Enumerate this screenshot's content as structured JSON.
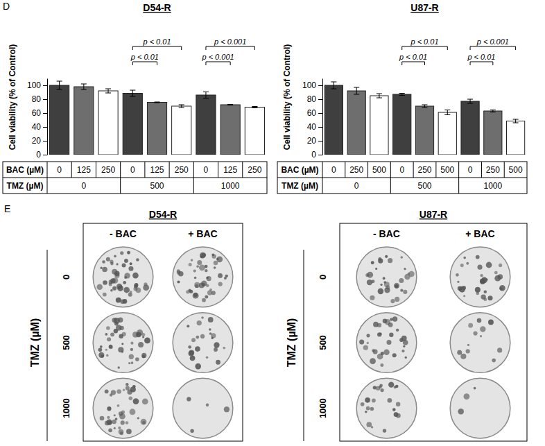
{
  "panel_labels": [
    "D",
    "E"
  ],
  "chart_data": [
    {
      "type": "bar",
      "title": "D54-R",
      "y_label": "Cell viability (% of Control)",
      "categories": [
        "0",
        "125",
        "250",
        "0",
        "125",
        "250",
        "0",
        "125",
        "250"
      ],
      "category_label": "BAC (µM)",
      "groups": [
        "0",
        "500",
        "1000"
      ],
      "group_label": "TMZ (µM)",
      "values": [
        100,
        98,
        92,
        88.5,
        75.5,
        70,
        86,
        72,
        68.5
      ],
      "errors": [
        6,
        4,
        3,
        4.5,
        0.5,
        2,
        4.5,
        0.5,
        1
      ],
      "colors": [
        "#3f3f3f",
        "#6e6e6e",
        "#ffffff",
        "#3f3f3f",
        "#6e6e6e",
        "#ffffff",
        "#3f3f3f",
        "#6e6e6e",
        "#ffffff"
      ],
      "ylim": [
        0,
        110
      ],
      "yticks": [
        0,
        20,
        40,
        60,
        80,
        100
      ],
      "annotations": [
        {
          "from": 3,
          "to": 4,
          "text": "p < 0.01"
        },
        {
          "from": 3,
          "to": 5,
          "text": "p < 0.01"
        },
        {
          "from": 6,
          "to": 7,
          "text": "p < 0.001"
        },
        {
          "from": 6,
          "to": 8,
          "text": "p < 0.001"
        }
      ]
    },
    {
      "type": "bar",
      "title": "U87-R",
      "y_label": "Cell viability (% of Control)",
      "categories": [
        "0",
        "250",
        "500",
        "0",
        "250",
        "500",
        "0",
        "250",
        "500"
      ],
      "category_label": "BAC (µM)",
      "groups": [
        "0",
        "500",
        "1000"
      ],
      "group_label": "TMZ (µM)",
      "values": [
        100,
        92,
        85,
        87,
        70,
        61,
        77,
        63,
        48.5
      ],
      "errors": [
        5,
        5,
        3,
        1.5,
        2,
        3.5,
        3,
        1.5,
        2.5
      ],
      "colors": [
        "#3f3f3f",
        "#6e6e6e",
        "#ffffff",
        "#3f3f3f",
        "#6e6e6e",
        "#ffffff",
        "#3f3f3f",
        "#6e6e6e",
        "#ffffff"
      ],
      "ylim": [
        0,
        110
      ],
      "yticks": [
        0,
        20,
        40,
        60,
        80,
        100
      ],
      "annotations": [
        {
          "from": 3,
          "to": 4,
          "text": "p < 0.01"
        },
        {
          "from": 3,
          "to": 5,
          "text": "p < 0.01"
        },
        {
          "from": 6,
          "to": 7,
          "text": "p < 0.01"
        },
        {
          "from": 6,
          "to": 8,
          "text": "p < 0.001"
        }
      ]
    }
  ],
  "panel_e": [
    {
      "title": "D54-R",
      "columns": [
        "- BAC",
        "+ BAC"
      ],
      "row_title": "TMZ (µM)",
      "rows": [
        "0",
        "500",
        "1000"
      ]
    },
    {
      "title": "U87-R",
      "columns": [
        "- BAC",
        "+ BAC"
      ],
      "row_title": "TMZ (µM)",
      "rows": [
        "0",
        "500",
        "1000"
      ]
    }
  ]
}
